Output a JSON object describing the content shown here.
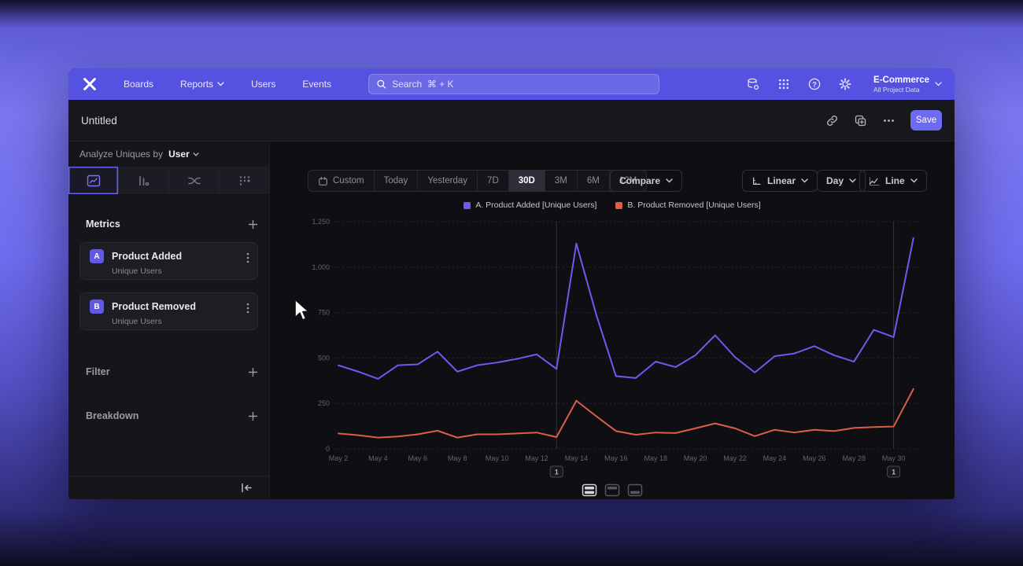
{
  "nav": {
    "items": [
      "Boards",
      "Reports",
      "Users",
      "Events"
    ],
    "search_placeholder": "Search  ⌘ + K",
    "project": {
      "name": "E-Commerce",
      "subtitle": "All Project Data"
    }
  },
  "titlebar": {
    "title": "Untitled",
    "save_label": "Save"
  },
  "sidebar": {
    "analyze_prefix": "Analyze Uniques by",
    "analyze_value": "User",
    "metrics_header": "Metrics",
    "metrics": [
      {
        "badge": "A",
        "name": "Product Added",
        "subtitle": "Unique Users"
      },
      {
        "badge": "B",
        "name": "Product Removed",
        "subtitle": "Unique Users"
      }
    ],
    "filter_label": "Filter",
    "breakdown_label": "Breakdown"
  },
  "toolbar": {
    "ranges": [
      "Custom",
      "Today",
      "Yesterday",
      "7D",
      "30D",
      "3M",
      "6M",
      "12M"
    ],
    "selected_range": "30D",
    "compare_label": "Compare",
    "scale_label": "Linear",
    "interval_label": "Day",
    "chart_type_label": "Line"
  },
  "chart_data": {
    "type": "line",
    "x": [
      "May 2",
      "May 3",
      "May 4",
      "May 5",
      "May 6",
      "May 7",
      "May 8",
      "May 9",
      "May 10",
      "May 11",
      "May 12",
      "May 13",
      "May 14",
      "May 15",
      "May 16",
      "May 17",
      "May 18",
      "May 19",
      "May 20",
      "May 21",
      "May 22",
      "May 23",
      "May 24",
      "May 25",
      "May 26",
      "May 27",
      "May 28",
      "May 29",
      "May 30",
      "May 31"
    ],
    "x_tick_labels": [
      "May 2",
      "May 4",
      "May 6",
      "May 8",
      "May 10",
      "May 12",
      "May 14",
      "May 16",
      "May 18",
      "May 20",
      "May 22",
      "May 24",
      "May 26",
      "May 28",
      "May 30"
    ],
    "series": [
      {
        "name": "A. Product Added [Unique Users]",
        "color": "#695CF1",
        "values": [
          460,
          425,
          385,
          460,
          465,
          535,
          425,
          460,
          475,
          495,
          520,
          440,
          1130,
          740,
          400,
          390,
          480,
          450,
          515,
          625,
          505,
          420,
          510,
          525,
          565,
          515,
          480,
          655,
          615,
          1160
        ]
      },
      {
        "name": "B. Product Removed [Unique Users]",
        "color": "#DD5E47",
        "values": [
          85,
          75,
          62,
          68,
          80,
          100,
          62,
          80,
          80,
          85,
          90,
          65,
          265,
          180,
          98,
          78,
          90,
          87,
          113,
          140,
          113,
          70,
          105,
          90,
          105,
          98,
          115,
          120,
          123,
          330
        ]
      }
    ],
    "ylim": [
      0,
      1250
    ],
    "yticks": [
      0,
      250,
      500,
      750,
      1000,
      1250
    ],
    "ytick_labels": [
      "0",
      "250",
      "500",
      "750",
      "1,000",
      "1,250"
    ],
    "annotations": [
      {
        "label": "1",
        "x_value": "May 13",
        "x_index": 11
      },
      {
        "label": "1",
        "x_value": "May 30",
        "x_index": 28
      }
    ],
    "grid": "horizontal-dashed",
    "legend_position": "top-center"
  }
}
